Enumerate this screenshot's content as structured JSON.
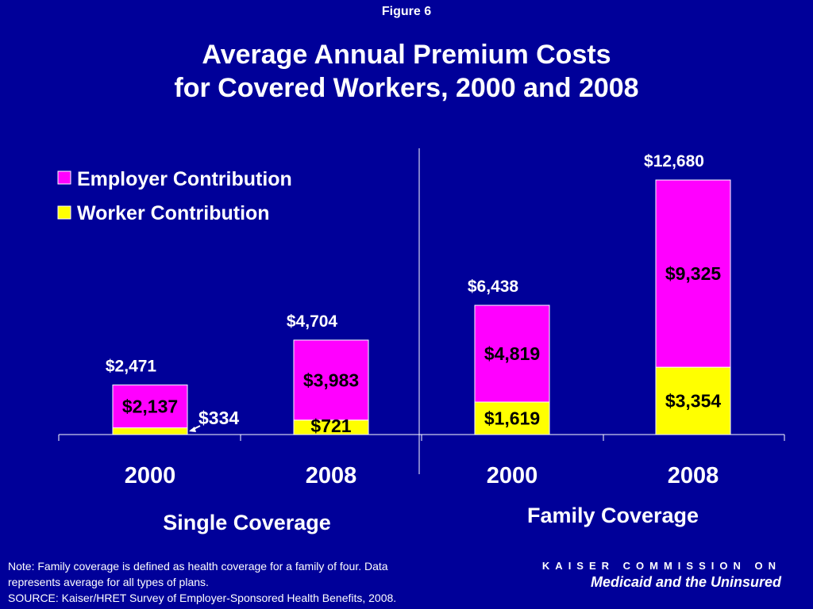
{
  "figure_label": "Figure 6",
  "title_line1": "Average Annual Premium Costs",
  "title_line2": "for Covered Workers, 2000 and 2008",
  "colors": {
    "background": "#000099",
    "employer": "#FF00FF",
    "worker": "#FFFF00"
  },
  "chart_data": {
    "type": "bar",
    "stacked": true,
    "groups": [
      {
        "label": "Single Coverage",
        "categories": [
          "2000",
          "2008"
        ]
      },
      {
        "label": "Family Coverage",
        "categories": [
          "2000",
          "2008"
        ]
      }
    ],
    "categories": [
      "2000",
      "2008",
      "2000",
      "2008"
    ],
    "series": [
      {
        "name": "Worker Contribution",
        "values": [
          334,
          721,
          1619,
          3354
        ],
        "labels": [
          "$334",
          "$721",
          "$1,619",
          "$3,354"
        ]
      },
      {
        "name": "Employer Contribution",
        "values": [
          2137,
          3983,
          4819,
          9325
        ],
        "labels": [
          "$2,137",
          "$3,983",
          "$4,819",
          "$9,325"
        ]
      }
    ],
    "totals": [
      2471,
      4704,
      6438,
      12680
    ],
    "total_labels": [
      "$2,471",
      "$4,704",
      "$6,438",
      "$12,680"
    ],
    "ylim": [
      0,
      14000
    ],
    "legend": {
      "position": "top-left",
      "entries": [
        "Employer Contribution",
        "Worker Contribution"
      ]
    },
    "grid": false
  },
  "note_line1": "Note: Family coverage is defined as health coverage for a family of four.  Data",
  "note_line2": "represents average for all types of plans.",
  "source": "SOURCE: Kaiser/HRET Survey of Employer-Sponsored Health Benefits, 2008.",
  "brand_top": "KAISER COMMISSION ON",
  "brand_bottom": "Medicaid and the Uninsured"
}
